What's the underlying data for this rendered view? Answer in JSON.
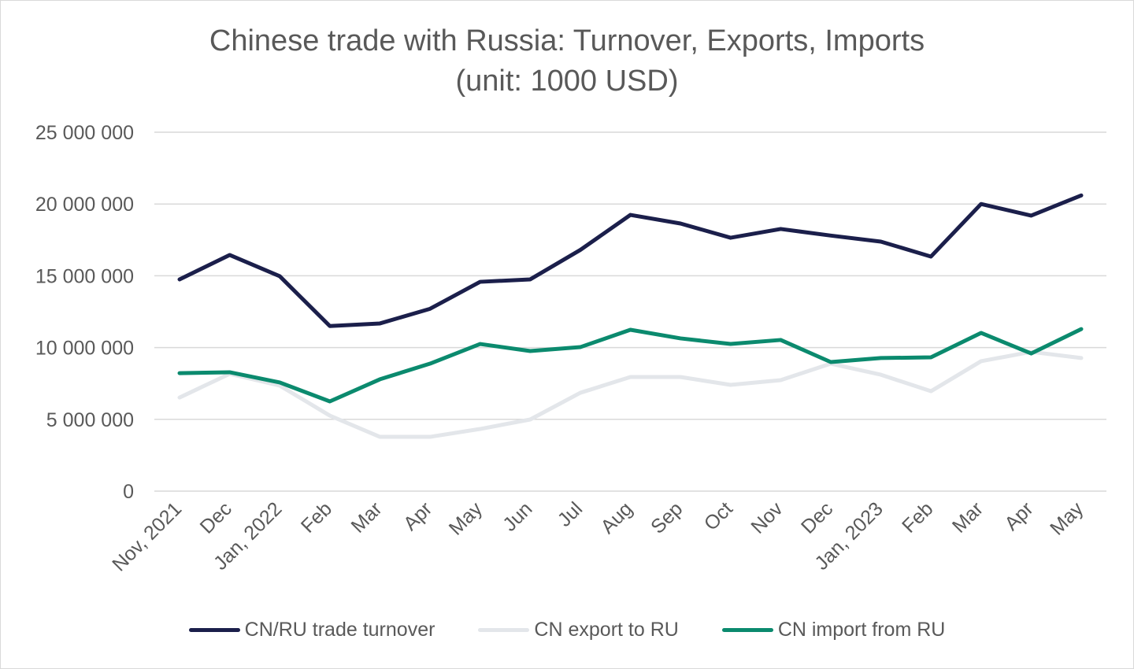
{
  "chart_data": {
    "type": "line",
    "title": "Chinese trade with Russia: Turnover, Exports, Imports",
    "subtitle": "(unit: 1000 USD)",
    "xlabel": "",
    "ylabel": "",
    "categories": [
      "Nov, 2021",
      "Dec",
      "Jan, 2022",
      "Feb",
      "Mar",
      "Apr",
      "May",
      "Jun",
      "Jul",
      "Aug",
      "Sep",
      "Oct",
      "Nov",
      "Dec",
      "Jan, 2023",
      "Feb",
      "Mar",
      "Apr",
      "May"
    ],
    "ylim": [
      0,
      25000000
    ],
    "yticks": [
      0,
      5000000,
      10000000,
      15000000,
      20000000,
      25000000
    ],
    "ytick_labels": [
      "0",
      "5 000 000",
      "10 000 000",
      "15 000 000",
      "20 000 000",
      "25 000 000"
    ],
    "grid": true,
    "legend_position": "bottom",
    "series": [
      {
        "name": "CN/RU trade turnover",
        "color": "#1b1f4b",
        "values": [
          14750000,
          16450000,
          14970000,
          11500000,
          11680000,
          12700000,
          14580000,
          14750000,
          16800000,
          19240000,
          18640000,
          17650000,
          18260000,
          17800000,
          17380000,
          16340000,
          20000000,
          19190000,
          20600000
        ]
      },
      {
        "name": "CN export to RU",
        "color": "#e3e6ea",
        "values": [
          6520000,
          8170000,
          7350000,
          5260000,
          3780000,
          3780000,
          4330000,
          4990000,
          6850000,
          7950000,
          7950000,
          7400000,
          7730000,
          8880000,
          8110000,
          6960000,
          9050000,
          9700000,
          9270000
        ]
      },
      {
        "name": "CN import from RU",
        "color": "#0b8a6e",
        "values": [
          8220000,
          8280000,
          7570000,
          6250000,
          7790000,
          8880000,
          10250000,
          9760000,
          10030000,
          11240000,
          10640000,
          10250000,
          10530000,
          8990000,
          9270000,
          9320000,
          11020000,
          9590000,
          11290000
        ]
      }
    ]
  }
}
